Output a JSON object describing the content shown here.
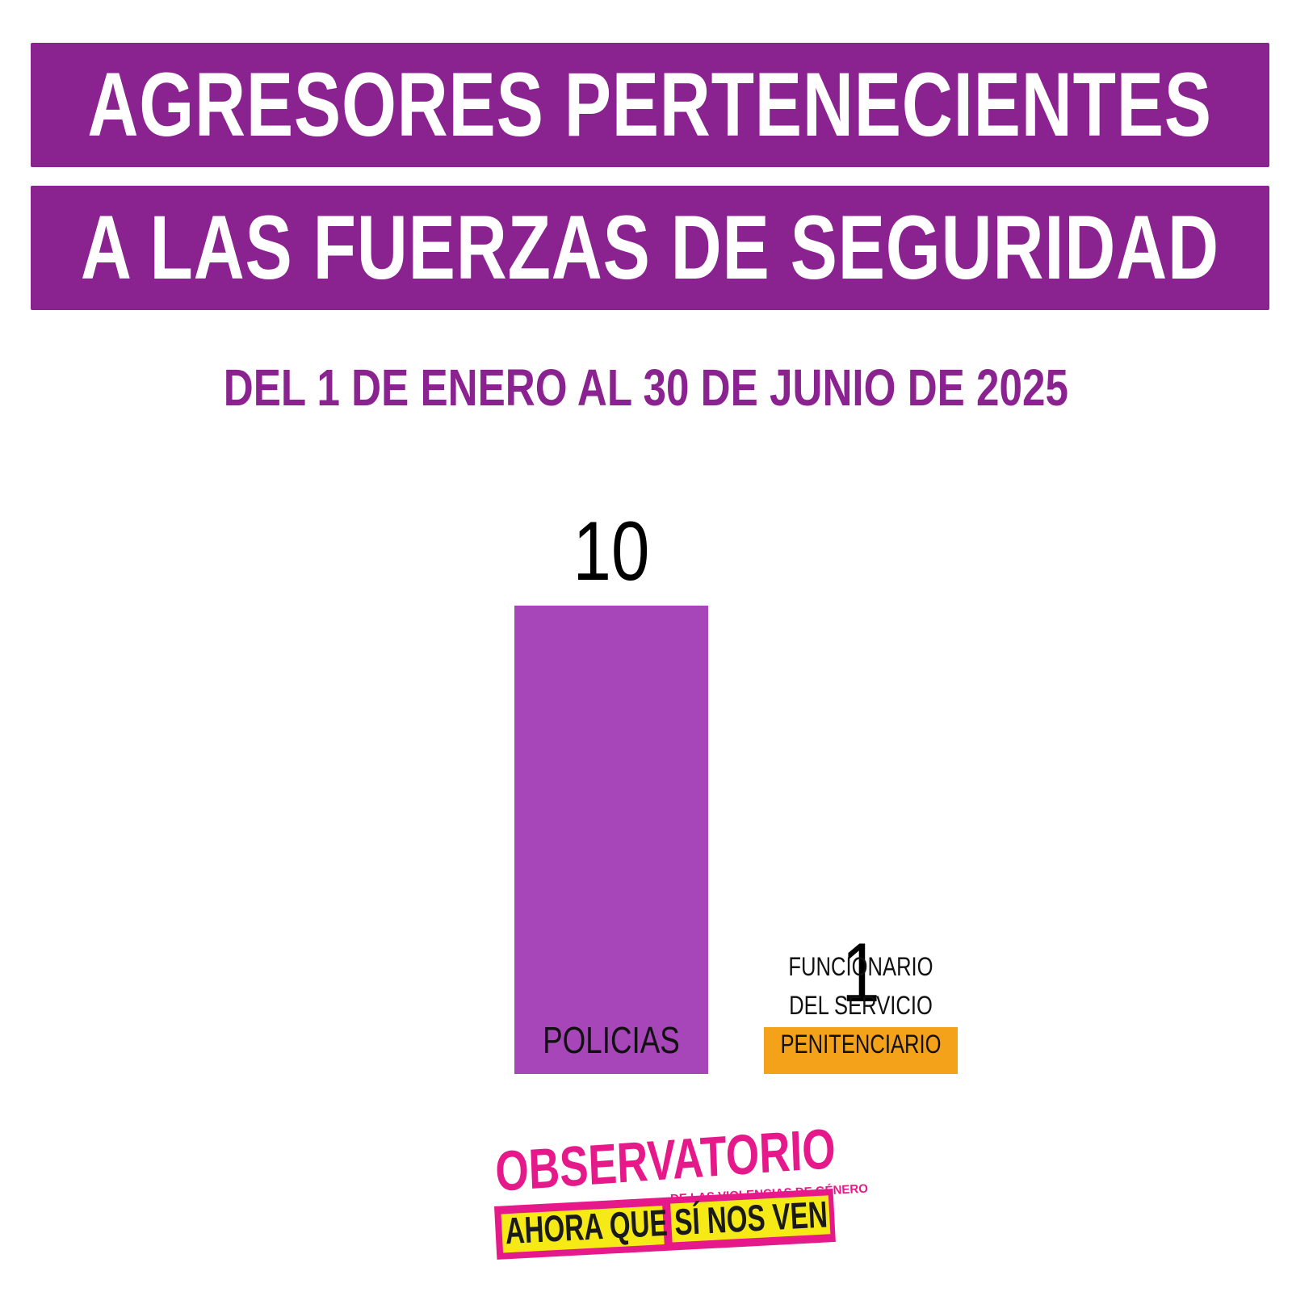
{
  "header": {
    "title_line1": "AGRESORES PERTENECIENTES",
    "title_line2": "A LAS FUERZAS DE SEGURIDAD",
    "subtitle": "DEL 1 DE ENERO AL 30 DE JUNIO DE 2025"
  },
  "chart_data": {
    "type": "bar",
    "title": "AGRESORES PERTENECIENTES A LAS FUERZAS DE SEGURIDAD",
    "subtitle": "DEL 1 DE ENERO AL 30 DE JUNIO DE 2025",
    "categories": [
      "POLICIAS",
      "FUNCIONARIO DEL SERVICIO PENITENCIARIO"
    ],
    "category_lines": [
      [
        "POLICIAS"
      ],
      [
        "FUNCIONARIO",
        "DEL SERVICIO",
        "PENITENCIARIO"
      ]
    ],
    "values": [
      10,
      1
    ],
    "colors": [
      "#a646b8",
      "#f4a21a"
    ],
    "ylim": [
      0,
      10
    ],
    "grid": false,
    "legend": "none",
    "data_labels": true
  },
  "logo": {
    "line1": "OBSERVATORIO",
    "line2": "DE LAS VIOLENCIAS DE GÉNERO",
    "line3a": "AHORA QUE",
    "line3b": "SÍ NOS VEN",
    "colors": {
      "pink": "#e6198a",
      "yellow": "#f6ea16"
    }
  },
  "colors": {
    "brand_purple": "#8a2390"
  }
}
